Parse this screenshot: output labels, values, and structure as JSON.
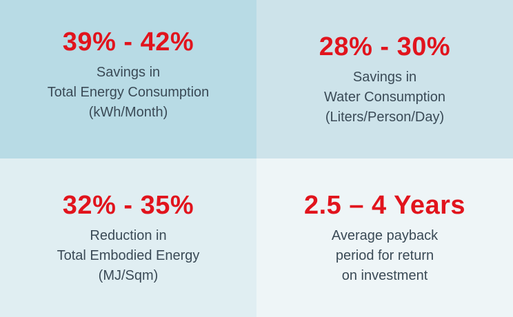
{
  "tiles": [
    {
      "value": "39% - 42%",
      "lines": [
        "Savings in",
        "Total Energy Consumption",
        "(kWh/Month)"
      ],
      "background": "#b8dbe5"
    },
    {
      "value": "28% - 30%",
      "lines": [
        "Savings in",
        "Water Consumption",
        "(Liters/Person/Day)"
      ],
      "background": "#cde3ea"
    },
    {
      "value": "32% - 35%",
      "lines": [
        "Reduction in",
        "Total Embodied Energy",
        "(MJ/Sqm)"
      ],
      "background": "#e0eef2"
    },
    {
      "value": "2.5 – 4 Years",
      "lines": [
        "Average payback",
        "period for return",
        "on investment"
      ],
      "background": "#eef5f7"
    }
  ],
  "colors": {
    "accent": "#e1141d",
    "text": "#3a4a56"
  }
}
